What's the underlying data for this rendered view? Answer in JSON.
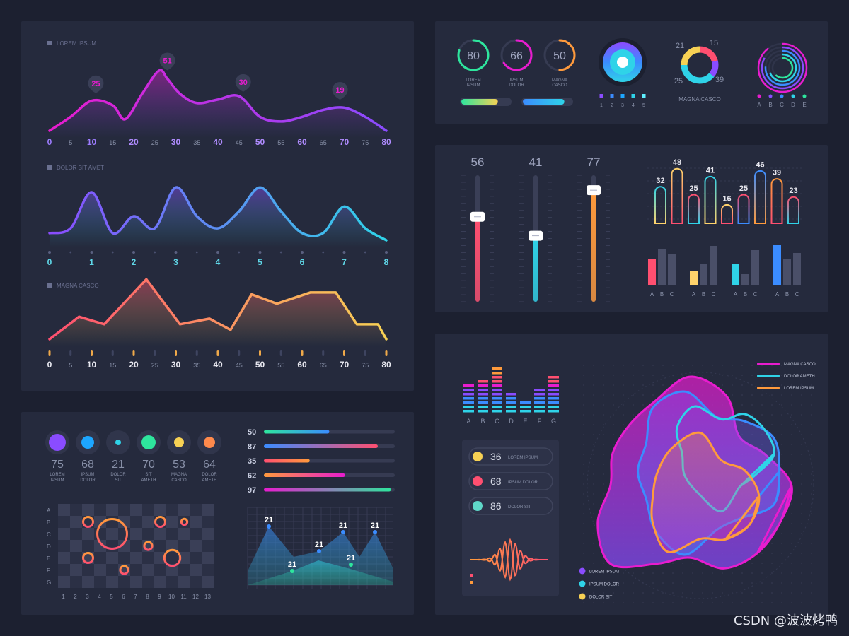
{
  "colors": {
    "background": "#1c2030",
    "panel": "#252a3d",
    "magenta": "#e81ccf",
    "purple": "#8a4cff",
    "blue": "#3b8cff",
    "cyan": "#2fd3e8",
    "green": "#2ee59d",
    "yellow": "#f7d154",
    "orange": "#ff9a3c",
    "red": "#ff4f70"
  },
  "watermark": "CSDN @波波烤鸭",
  "chart_data": [
    {
      "type": "area",
      "title": "LOREM IPSUM",
      "x_ticks": [
        "0",
        "5",
        "10",
        "15",
        "20",
        "25",
        "30",
        "35",
        "40",
        "45",
        "50",
        "55",
        "60",
        "65",
        "70",
        "75",
        "80"
      ],
      "xlim": [
        0,
        80
      ],
      "x": [
        0,
        5,
        10,
        15,
        18,
        22,
        26,
        28,
        31,
        35,
        40,
        45,
        50,
        55,
        60,
        65,
        70,
        75,
        80
      ],
      "values": [
        0,
        12,
        26,
        22,
        10,
        32,
        52,
        45,
        32,
        24,
        27,
        30,
        12,
        8,
        12,
        18,
        20,
        12,
        0
      ],
      "callouts": [
        {
          "x": 11,
          "label": "25"
        },
        {
          "x": 28,
          "label": "51"
        },
        {
          "x": 46,
          "label": "30"
        },
        {
          "x": 69,
          "label": "19"
        }
      ],
      "gradient": [
        "#e81ccf",
        "#8a4cff"
      ]
    },
    {
      "type": "area",
      "title": "DOLOR SIT AMET",
      "x_ticks": [
        "0",
        "1",
        "2",
        "3",
        "4",
        "5",
        "6",
        "7",
        "8"
      ],
      "xlim": [
        0,
        8
      ],
      "x": [
        0,
        0.5,
        1,
        1.5,
        2,
        2.5,
        3,
        3.5,
        4,
        4.5,
        5,
        5.5,
        6,
        6.5,
        7,
        7.5,
        8
      ],
      "values": [
        3,
        5,
        20,
        3,
        10,
        5,
        22,
        10,
        5,
        12,
        22,
        12,
        3,
        3,
        14,
        5,
        0
      ],
      "gradient": [
        "#8a4cff",
        "#2fd3e8"
      ]
    },
    {
      "type": "area",
      "title": "MAGNA CASCO",
      "x_ticks": [
        "0",
        "5",
        "10",
        "15",
        "20",
        "25",
        "30",
        "35",
        "40",
        "45",
        "50",
        "55",
        "60",
        "65",
        "70",
        "75",
        "80"
      ],
      "xlim": [
        0,
        80
      ],
      "x": [
        0,
        7,
        13,
        23,
        31,
        38,
        43,
        48,
        54,
        62,
        68,
        73,
        78,
        80
      ],
      "values": [
        0,
        12,
        8,
        32,
        8,
        11,
        5,
        24,
        19,
        25,
        25,
        8,
        8,
        0
      ],
      "gradient": [
        "#ff4f70",
        "#f7d154"
      ]
    },
    {
      "type": "table",
      "title": "",
      "rings": [
        {
          "value": "80",
          "label": "LOREM IPSUM",
          "percent": 0.8,
          "color": "#2ee59d"
        },
        {
          "value": "66",
          "label": "IPSUM DOLOR",
          "percent": 0.66,
          "color": "#e81ccf"
        },
        {
          "value": "50",
          "label": "MAGNA CASCO",
          "percent": 0.5,
          "color": "#ff9a3c"
        }
      ],
      "pills": [
        {
          "fill": 0.75,
          "color": "#f7d154"
        },
        {
          "fill": 0.85,
          "color": "#2fd3e8"
        }
      ]
    },
    {
      "type": "pie",
      "title": "",
      "target_legend": [
        "1",
        "2",
        "3",
        "4",
        "5"
      ],
      "donut_labels": [
        "21",
        "15",
        "39",
        "25"
      ],
      "donut_caption": "MAGNA CASCO",
      "donut_values": [
        21,
        15,
        39,
        25
      ],
      "radial_legend": [
        "A",
        "B",
        "C",
        "D",
        "E"
      ]
    },
    {
      "type": "bar",
      "title": "",
      "sliders": [
        {
          "label": "56",
          "value": 56,
          "color": "#ff4f70"
        },
        {
          "label": "41",
          "value": 41,
          "color": "#2fd3e8"
        },
        {
          "label": "77",
          "value": 77,
          "color": "#ff9a3c"
        }
      ]
    },
    {
      "type": "bar",
      "title": "",
      "labels": [
        "32",
        "48",
        "25",
        "41",
        "16",
        "25",
        "46",
        "39",
        "23"
      ],
      "values": [
        32,
        48,
        25,
        41,
        16,
        25,
        46,
        39,
        23
      ],
      "ylim": [
        0,
        50
      ]
    },
    {
      "type": "bar",
      "title": "",
      "groups": [
        "A B C",
        "A B C",
        "A B C",
        "A B C"
      ],
      "categories": [
        "A",
        "B",
        "C"
      ],
      "series_colors": [
        "#ff4f70",
        "#ffd36b",
        "#2fd3e8",
        "#3b8cff"
      ],
      "values": [
        [
          38,
          52,
          44
        ],
        [
          20,
          30,
          56
        ],
        [
          30,
          16,
          50
        ],
        [
          58,
          38,
          46
        ]
      ],
      "ylim": [
        0,
        60
      ]
    },
    {
      "type": "bar",
      "title": "",
      "categories": [
        "A",
        "B",
        "C",
        "D",
        "E",
        "F",
        "G"
      ],
      "values": [
        7,
        8,
        11,
        5,
        3,
        6,
        9
      ],
      "ylim": [
        0,
        12
      ]
    },
    {
      "type": "table",
      "title": "",
      "rows": [
        {
          "value": "36",
          "label": "LOREM IPSUM",
          "color": "#f7d154"
        },
        {
          "value": "68",
          "label": "IPSUM DOLOR",
          "color": "#ff4f70"
        },
        {
          "value": "86",
          "label": "DOLOR SIT",
          "color": "#5fd7c8"
        }
      ]
    },
    {
      "type": "area",
      "title": "",
      "legend_top": [
        {
          "name": "MAGNA CASCO",
          "color": "#e81ccf"
        },
        {
          "name": "DOLOR AMETH",
          "color": "#2fd3e8"
        },
        {
          "name": "LOREM IPSUM",
          "color": "#ff9a3c"
        }
      ],
      "legend_bottom": [
        {
          "name": "LOREM IPSUM",
          "color": "#8a4cff"
        },
        {
          "name": "IPSUM DOLOR",
          "color": "#2fd3e8"
        },
        {
          "name": "DOLOR SIT",
          "color": "#f7d154"
        }
      ]
    },
    {
      "type": "table",
      "title": "",
      "stats": [
        {
          "value": "75",
          "label": "LOREM IPSUM",
          "color": "#8a4cff"
        },
        {
          "value": "68",
          "label": "IPSUM DOLOR",
          "color": "#1da6ff"
        },
        {
          "value": "21",
          "label": "DOLOR SIT",
          "color": "#2fd3e8"
        },
        {
          "value": "70",
          "label": "SIT AMETH",
          "color": "#2ee59d"
        },
        {
          "value": "53",
          "label": "MAGNA CASCO",
          "color": "#f7d154"
        },
        {
          "value": "64",
          "label": "DOLOR AMETH",
          "color": "#ff8a4c"
        }
      ]
    },
    {
      "type": "bar",
      "title": "",
      "labels": [
        "50",
        "87",
        "35",
        "62",
        "97"
      ],
      "values": [
        50,
        87,
        35,
        62,
        97
      ],
      "xlim": [
        0,
        100
      ],
      "colors": [
        "#2ee59d",
        "#3b8cff",
        "#ff4f70",
        "#ff9a3c",
        "#e81ccf"
      ]
    },
    {
      "type": "scatter",
      "title": "",
      "rows": [
        "A",
        "B",
        "C",
        "D",
        "E",
        "F",
        "G"
      ],
      "cols": [
        "1",
        "2",
        "3",
        "4",
        "5",
        "6",
        "7",
        "8",
        "9",
        "10",
        "11",
        "12",
        "13"
      ],
      "points": [
        {
          "col": 3,
          "row": "B",
          "size": 1
        },
        {
          "col": 5,
          "row": "C",
          "size": 3
        },
        {
          "col": 9,
          "row": "B",
          "size": 1
        },
        {
          "col": 11,
          "row": "B",
          "size": 0.6
        },
        {
          "col": 8,
          "row": "D",
          "size": 0.8
        },
        {
          "col": 3,
          "row": "E",
          "size": 1
        },
        {
          "col": 10,
          "row": "E",
          "size": 1.6
        },
        {
          "col": 6,
          "row": "F",
          "size": 0.8
        }
      ]
    },
    {
      "type": "area",
      "title": "",
      "labels": [
        "21",
        "21",
        "21",
        "21",
        "21",
        "21"
      ]
    }
  ]
}
